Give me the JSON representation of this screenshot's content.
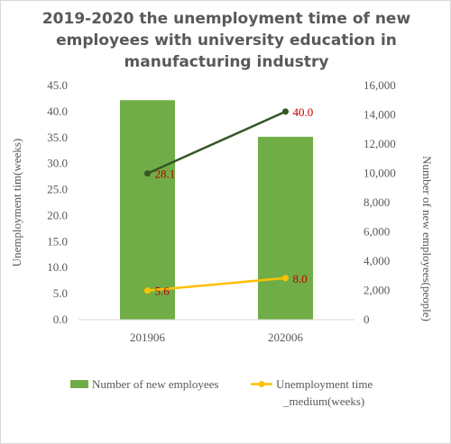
{
  "chart_data": {
    "type": "bar+line",
    "title": "2019-2020  the unemployment time of new employees with university education in manufacturing industry",
    "categories": [
      "201906",
      "202006"
    ],
    "bar_series": {
      "name": "Number of new employees",
      "values": [
        15000,
        12500
      ],
      "axis": "right",
      "color": "#70ad47"
    },
    "line_series": [
      {
        "name": "",
        "values": [
          28.1,
          40.0
        ],
        "labels": [
          "28.1",
          "40.0"
        ],
        "axis": "left",
        "color": "#375623"
      },
      {
        "name": "Unemployment time _medium(weeks)",
        "values": [
          5.6,
          8.0
        ],
        "labels": [
          "5.6",
          "8.0"
        ],
        "axis": "left",
        "color": "#ffc000"
      }
    ],
    "y_left": {
      "label": "Unemployment tim(weeks)",
      "min": 0,
      "max": 45,
      "step": 5,
      "ticks": [
        "0.0",
        "5.0",
        "10.0",
        "15.0",
        "20.0",
        "25.0",
        "30.0",
        "35.0",
        "40.0",
        "45.0"
      ]
    },
    "y_right": {
      "label": "Number of new employees(people)",
      "min": 0,
      "max": 16000,
      "step": 2000,
      "ticks": [
        "0",
        "2,000",
        "4,000",
        "6,000",
        "8,000",
        "10,000",
        "12,000",
        "14,000",
        "16,000"
      ]
    },
    "legend": {
      "position": "bottom",
      "items": [
        {
          "label": "Number of new employees",
          "kind": "bar",
          "color": "#70ad47"
        },
        {
          "label_line1": "Unemployment time",
          "label_line2": "_medium(weeks)",
          "kind": "line",
          "color": "#ffc000"
        }
      ]
    }
  }
}
